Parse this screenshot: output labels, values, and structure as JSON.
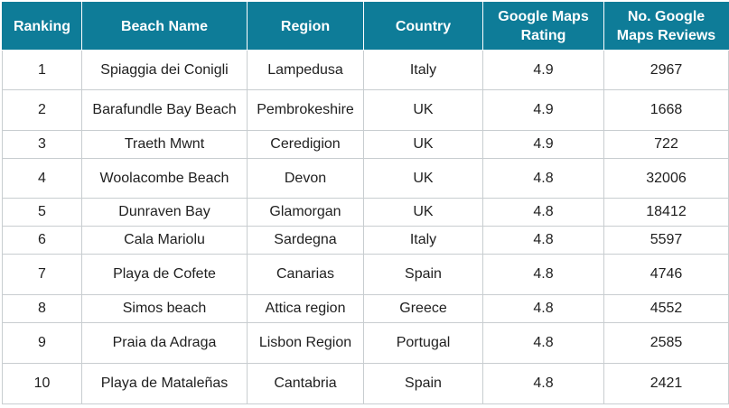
{
  "table": {
    "headers": [
      "Ranking",
      "Beach Name",
      "Region",
      "Country",
      "Google Maps Rating",
      "No. Google Maps Reviews"
    ],
    "rows": [
      [
        "1",
        "Spiaggia dei Conigli",
        "Lampedusa",
        "Italy",
        "4.9",
        "2967"
      ],
      [
        "2",
        "Barafundle Bay Beach",
        "Pembrokeshire",
        "UK",
        "4.9",
        "1668"
      ],
      [
        "3",
        "Traeth Mwnt",
        "Ceredigion",
        "UK",
        "4.9",
        "722"
      ],
      [
        "4",
        "Woolacombe Beach",
        "Devon",
        "UK",
        "4.8",
        "32006"
      ],
      [
        "5",
        "Dunraven Bay",
        "Glamorgan",
        "UK",
        "4.8",
        "18412"
      ],
      [
        "6",
        "Cala Mariolu",
        "Sardegna",
        "Italy",
        "4.8",
        "5597"
      ],
      [
        "7",
        "Playa de Cofete",
        "Canarias",
        "Spain",
        "4.8",
        "4746"
      ],
      [
        "8",
        "Simos beach",
        "Attica region",
        "Greece",
        "4.8",
        "4552"
      ],
      [
        "9",
        "Praia da Adraga",
        "Lisbon Region",
        "Portugal",
        "4.8",
        "2585"
      ],
      [
        "10",
        "Playa de Mataleñas",
        "Cantabria",
        "Spain",
        "4.8",
        "2421"
      ]
    ]
  },
  "colors": {
    "header_background": "#0e7c98",
    "header_text": "#ffffff",
    "grid": "#c8cdd0"
  }
}
